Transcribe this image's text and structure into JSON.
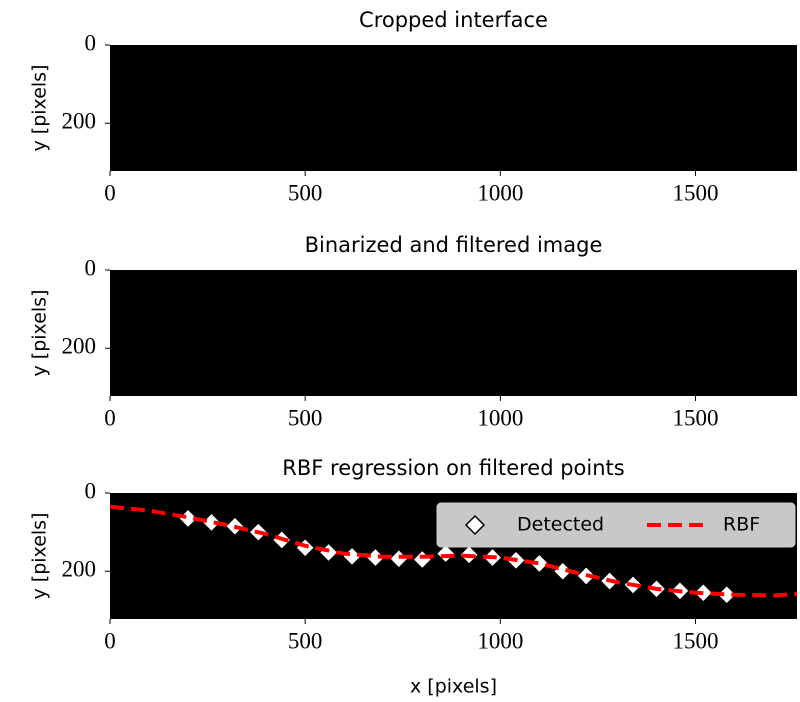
{
  "chart_data": [
    {
      "type": "image",
      "title": "Cropped interface",
      "ylabel": "y [pixels]",
      "xlim": [
        0,
        1760
      ],
      "ylim": [
        322,
        0
      ],
      "xticks": [
        0,
        500,
        1000,
        1500
      ],
      "yticks": [
        0,
        200
      ]
    },
    {
      "type": "image",
      "title": "Binarized and filtered image",
      "ylabel": "y [pixels]",
      "xlim": [
        0,
        1760
      ],
      "ylim": [
        322,
        0
      ],
      "xticks": [
        0,
        500,
        1000,
        1500
      ],
      "yticks": [
        0,
        200
      ]
    },
    {
      "type": "scatter",
      "title": "RBF regression on filtered points",
      "ylabel": "y [pixels]",
      "xlabel": "x [pixels]",
      "xlim": [
        0,
        1760
      ],
      "ylim": [
        322,
        0
      ],
      "xticks": [
        0,
        500,
        1000,
        1500
      ],
      "yticks": [
        0,
        200
      ],
      "legend": "upper right",
      "series": [
        {
          "name": "Detected",
          "kind": "marker",
          "color": "#ffffff",
          "x": [
            200,
            260,
            320,
            380,
            440,
            500,
            560,
            620,
            680,
            740,
            800,
            860,
            920,
            980,
            1040,
            1100,
            1160,
            1220,
            1280,
            1340,
            1400,
            1460,
            1520,
            1580
          ],
          "values": [
            65,
            75,
            85,
            100,
            120,
            140,
            152,
            162,
            165,
            168,
            170,
            155,
            158,
            165,
            172,
            180,
            200,
            212,
            225,
            235,
            245,
            250,
            255,
            260
          ]
        },
        {
          "name": "RBF",
          "kind": "dashed-line",
          "color": "#ff0000",
          "x": [
            0,
            100,
            200,
            300,
            400,
            500,
            600,
            700,
            800,
            900,
            1000,
            1100,
            1200,
            1300,
            1400,
            1500,
            1600,
            1700,
            1760
          ],
          "values": [
            35,
            45,
            62,
            82,
            105,
            135,
            155,
            163,
            163,
            160,
            165,
            180,
            205,
            228,
            245,
            255,
            260,
            262,
            258
          ]
        }
      ]
    }
  ]
}
